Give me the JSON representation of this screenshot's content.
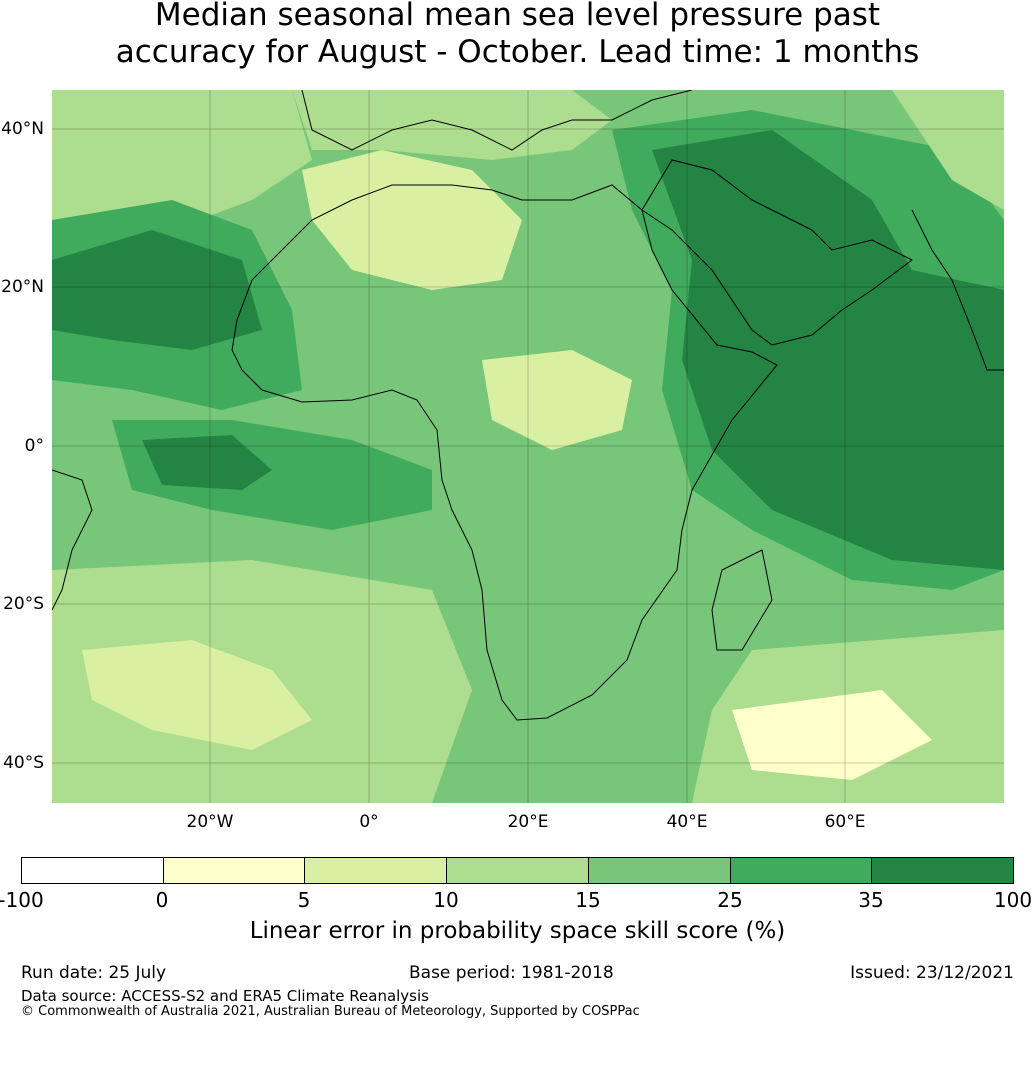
{
  "title": {
    "line1": "Median seasonal mean sea level pressure past",
    "line2": "accuracy for August - October. Lead time: 1 months"
  },
  "map": {
    "lat_labels": [
      "40°N",
      "20°N",
      "0°",
      "20°S",
      "40°S"
    ],
    "lon_labels": [
      "20°W",
      "0°",
      "20°E",
      "40°E",
      "60°E"
    ],
    "gridlines": true
  },
  "colorbar": {
    "ticks": [
      "-100",
      "0",
      "5",
      "10",
      "15",
      "25",
      "35",
      "100"
    ],
    "colors": [
      "#ffffff",
      "#ffffcc",
      "#d9f0a3",
      "#addd8e",
      "#78c679",
      "#41ab5d",
      "#238443"
    ],
    "label": "Linear error in probability space skill score (%)"
  },
  "footer": {
    "run_date": "Run date: 25 July",
    "base_period": "Base period: 1981-2018",
    "issued": "Issued: 23/12/2021",
    "data_source": "Data source: ACCESS-S2 and ERA5 Climate Reanalysis",
    "copyright": "© Commonwealth of Australia 2021, Australian Bureau of Meteorology, Supported by COSPPac"
  }
}
